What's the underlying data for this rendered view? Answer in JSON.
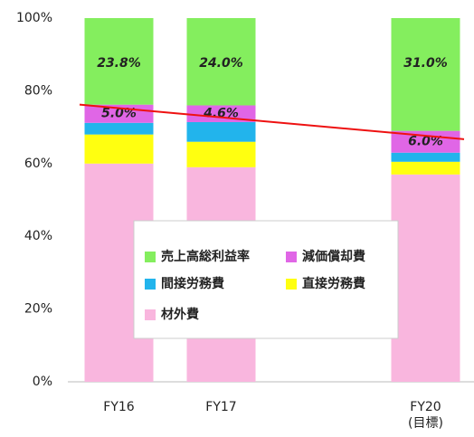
{
  "chart_data": {
    "type": "stacked_bar",
    "categories": [
      "FY16",
      "FY17",
      null,
      "FY20"
    ],
    "category_note": {
      "index": 3,
      "text": "(目標)"
    },
    "series": [
      {
        "name": "材外費",
        "color": "#f9b6de",
        "values": [
          60,
          59,
          null,
          57
        ],
        "value_labels": [
          null,
          null,
          null,
          null
        ]
      },
      {
        "name": "直接労務費",
        "color": "#ffff10",
        "values": [
          8,
          7,
          null,
          3.5
        ],
        "value_labels": [
          null,
          null,
          null,
          null
        ]
      },
      {
        "name": "間接労務費",
        "color": "#22b4ec",
        "values": [
          3.2,
          5.4,
          null,
          2.5
        ],
        "value_labels": [
          null,
          null,
          null,
          null
        ]
      },
      {
        "name": "減価償却費",
        "color": "#e066e6",
        "values": [
          5.0,
          4.6,
          null,
          6.0
        ],
        "value_labels": [
          "5.0%",
          "4.6%",
          null,
          "6.0%"
        ]
      },
      {
        "name": "売上高総利益率",
        "color": "#84ee5e",
        "values": [
          23.8,
          24.0,
          null,
          31.0
        ],
        "value_labels": [
          "23.8%",
          "24.0%",
          null,
          "31.0%"
        ]
      }
    ],
    "trend_line": {
      "color": "#ee1111",
      "start": 76.2,
      "end": 66.7
    },
    "ylim": [
      0,
      100
    ],
    "yticks": [
      {
        "value": 0,
        "label": "0%"
      },
      {
        "value": 20,
        "label": "20%"
      },
      {
        "value": 40,
        "label": "40%"
      },
      {
        "value": 60,
        "label": "60%"
      },
      {
        "value": 80,
        "label": "80%"
      },
      {
        "value": 100,
        "label": "100%"
      }
    ],
    "legend": "center"
  }
}
